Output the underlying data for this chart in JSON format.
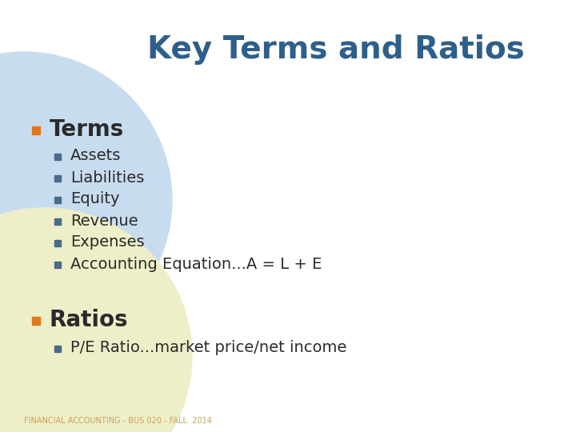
{
  "title": "Key Terms and Ratios",
  "title_color": "#2E5F8A",
  "title_fontsize": 28,
  "background_color": "#FFFFFF",
  "bullet_color_orange": "#E07820",
  "bullet_color_blue": "#4A6A8A",
  "text_color_main": "#2A2A2A",
  "section1_header": "Terms",
  "section1_items": [
    "Assets",
    "Liabilities",
    "Equity",
    "Revenue",
    "Expenses",
    "Accounting Equation...A = L + E"
  ],
  "section2_header": "Ratios",
  "section2_items": [
    "P/E Ratio...market price/net income"
  ],
  "footer": "FINANCIAL ACCOUNTING - BUS 020 - FALL  2014",
  "footer_color": "#C8A060",
  "footer_fontsize": 7,
  "circle_color_top": "#C8DCF0",
  "circle_color_bottom": "#EEEFC8",
  "item_fontsize": 14,
  "section_header_fontsize": 20
}
